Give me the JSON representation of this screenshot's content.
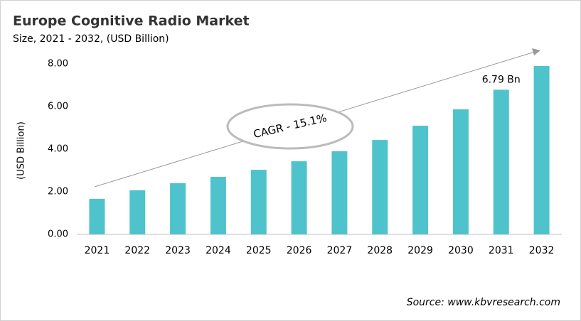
{
  "chart_data": {
    "type": "bar",
    "title": "Europe Cognitive Radio Market",
    "subtitle": "Size, 2021 - 2032, (USD Billion)",
    "y_label": "(USD Billion)",
    "annotation": "CAGR - 15.1%",
    "source": "Source: www.kbvresearch.com",
    "categories": [
      "2021",
      "2022",
      "2023",
      "2024",
      "2025",
      "2026",
      "2027",
      "2028",
      "2029",
      "2030",
      "2031",
      "2032"
    ],
    "values": [
      1.67,
      2.07,
      2.4,
      2.7,
      3.03,
      3.43,
      3.9,
      4.43,
      5.1,
      5.87,
      6.79,
      7.9
    ],
    "value_labels": [
      null,
      null,
      null,
      null,
      null,
      null,
      null,
      null,
      null,
      null,
      "6.79 Bn",
      null
    ],
    "color": "#4fc3cc",
    "ylim": [
      0,
      8
    ],
    "yticks": [
      {
        "value": 0,
        "label": "0.00"
      },
      {
        "value": 2,
        "label": "2.00"
      },
      {
        "value": 4,
        "label": "4.00"
      },
      {
        "value": 6,
        "label": "6.00"
      },
      {
        "value": 8,
        "label": "8.00"
      }
    ],
    "grid": false
  }
}
